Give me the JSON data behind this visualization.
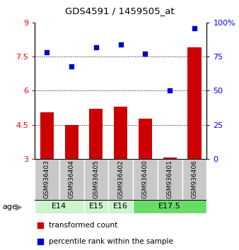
{
  "title": "GDS4591 / 1459505_at",
  "samples": [
    "GSM936403",
    "GSM936404",
    "GSM936405",
    "GSM936402",
    "GSM936400",
    "GSM936401",
    "GSM936406"
  ],
  "transformed_count": [
    5.05,
    4.48,
    5.2,
    5.28,
    4.78,
    3.05,
    7.9
  ],
  "percentile_rank": [
    78,
    68,
    82,
    84,
    77,
    50,
    96
  ],
  "age_groups": [
    {
      "label": "E14",
      "start": 0,
      "end": 2,
      "color": "#ccf5cc"
    },
    {
      "label": "E15",
      "start": 2,
      "end": 3,
      "color": "#ccf5cc"
    },
    {
      "label": "E16",
      "start": 3,
      "end": 4,
      "color": "#ccf5cc"
    },
    {
      "label": "E17.5",
      "start": 4,
      "end": 7,
      "color": "#66dd66"
    }
  ],
  "ylim_left": [
    3,
    9
  ],
  "ylim_right": [
    0,
    100
  ],
  "yticks_left": [
    3,
    4.5,
    6,
    7.5,
    9
  ],
  "yticks_right": [
    0,
    25,
    50,
    75,
    100
  ],
  "yticklabels_left": [
    "3",
    "4.5",
    "6",
    "7.5",
    "9"
  ],
  "yticklabels_right": [
    "0",
    "25",
    "50",
    "75",
    "100%"
  ],
  "bar_color": "#cc0000",
  "dot_color": "#0000cc",
  "bar_bottom": 3,
  "hlines": [
    4.5,
    6,
    7.5
  ],
  "sample_box_color": "#c8c8c8",
  "legend_items": [
    {
      "color": "#cc0000",
      "label": "transformed count"
    },
    {
      "color": "#0000cc",
      "label": "percentile rank within the sample"
    }
  ],
  "figsize": [
    3.38,
    3.54
  ],
  "dpi": 100
}
